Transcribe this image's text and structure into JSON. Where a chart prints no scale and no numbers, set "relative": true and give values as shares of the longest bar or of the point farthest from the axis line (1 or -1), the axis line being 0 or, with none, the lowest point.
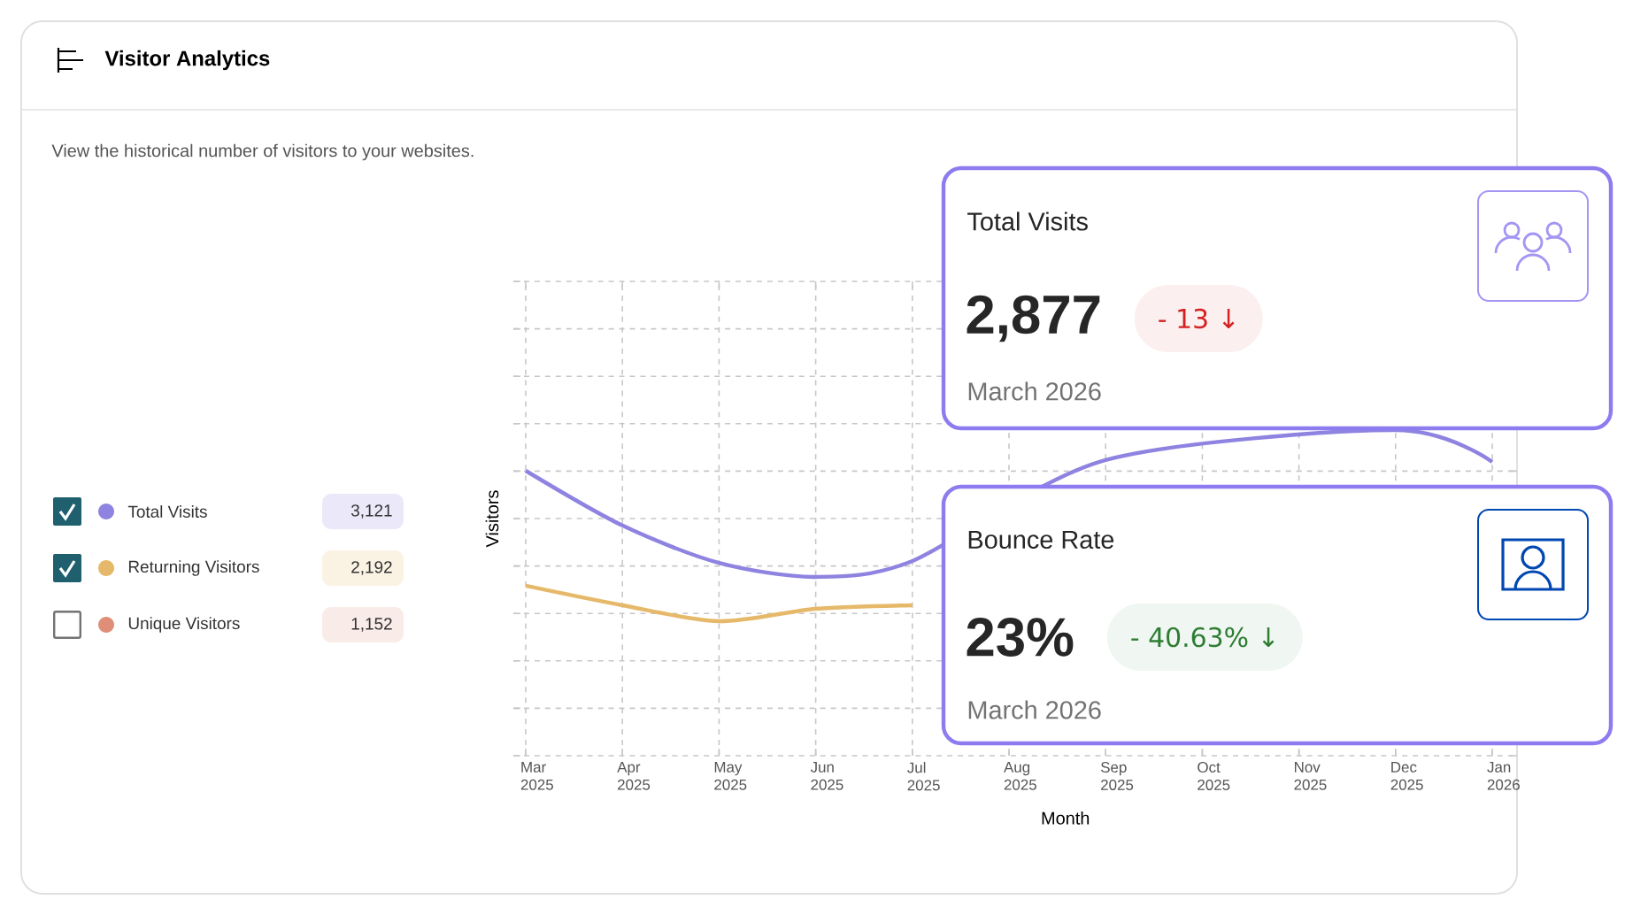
{
  "chart_data": {
    "type": "line",
    "title": "Visitor Analytics",
    "subtitle": "View the historical number of visitors to your websites.",
    "xlabel": "Month",
    "ylabel": "Visitors",
    "categories": [
      "Mar 2025",
      "Apr 2025",
      "May 2025",
      "Jun 2025",
      "Jul 2025",
      "Aug 2025",
      "Sep 2025",
      "Oct 2025",
      "Nov 2025",
      "Dec 2025",
      "Jan 2026"
    ],
    "relative": true,
    "grid": true,
    "legend": "left",
    "line_style": "solid",
    "marker": "none",
    "series": [
      {
        "name": "Total Visits",
        "color": "#8e83e0",
        "values": [
          0.875,
          0.707,
          0.592,
          0.549,
          0.598,
          null,
          0.908,
          null,
          null,
          1.0,
          0.902
        ]
      },
      {
        "name": "Returning Visitors",
        "color": "#e6b96a",
        "values": [
          0.522,
          0.462,
          0.413,
          0.451,
          0.462,
          null,
          null,
          null,
          null,
          null,
          null
        ]
      },
      {
        "name": "Unique Visitors",
        "color": "#df8f78",
        "values": [
          null,
          null,
          null,
          null,
          null,
          null,
          null,
          null,
          null,
          null,
          null
        ]
      }
    ],
    "annotations": [
      "3,121",
      "2,192",
      "1,152",
      "Total Visits",
      "2,877",
      "- 13 ↓",
      "March 2026",
      "Bounce Rate",
      "23%",
      "- 40.63% ↓",
      "March 2026"
    ]
  }
}
